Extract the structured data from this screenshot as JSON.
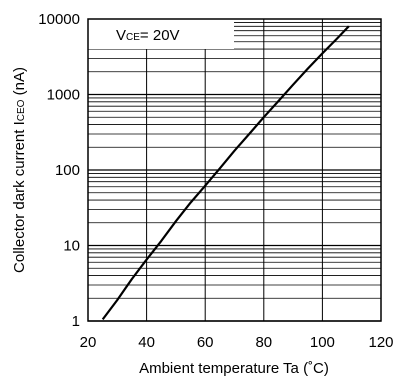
{
  "chart_data": {
    "type": "line",
    "xlabel": "Ambient temperature Ta (˚C)",
    "ylabel": "Collector dark current ICEO (nA)",
    "ylabel_parts": {
      "main": "Collector dark current I",
      "sub": "CEO",
      "unit": " (nA)"
    },
    "annotation": {
      "main": "V",
      "sub": "CE",
      "rest": "= 20V"
    },
    "x_scale": "linear",
    "y_scale": "log",
    "xlim": [
      20,
      120
    ],
    "ylim": [
      1,
      10000
    ],
    "x_ticks": [
      20,
      40,
      60,
      80,
      100,
      120
    ],
    "x_tick_labels": [
      "20",
      "40",
      "60",
      "80",
      "100",
      "120"
    ],
    "y_ticks": [
      1,
      10,
      100,
      1000,
      10000
    ],
    "y_tick_labels": [
      "1",
      "10",
      "100",
      "1000",
      "10000"
    ],
    "grid": true,
    "series": [
      {
        "color": "#000000",
        "x": [
          25,
          30,
          35,
          40,
          45,
          50,
          55,
          60,
          65,
          70,
          75,
          80,
          85,
          90,
          95,
          100,
          105,
          109
        ],
        "y": [
          1.05,
          1.9,
          3.6,
          6.5,
          11.5,
          21,
          37,
          62,
          105,
          180,
          300,
          500,
          820,
          1350,
          2200,
          3500,
          5500,
          8000
        ]
      }
    ]
  }
}
